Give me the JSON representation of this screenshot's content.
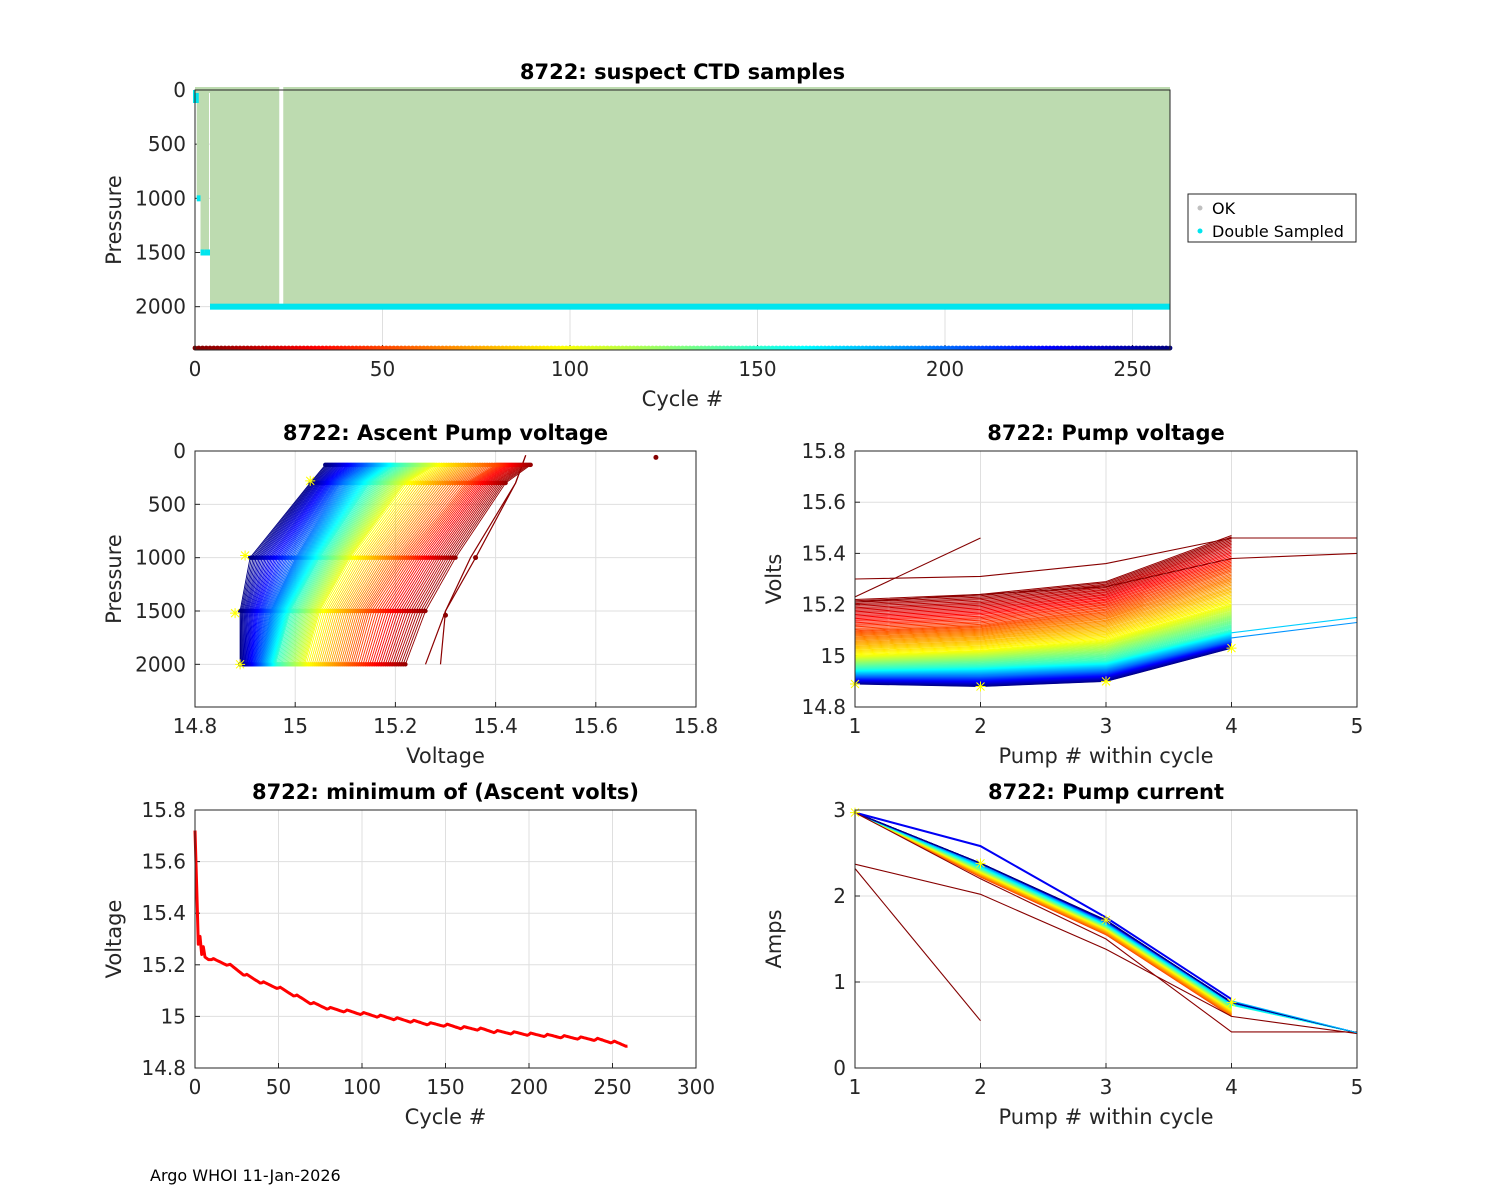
{
  "footer": "Argo WHOI 11-Jan-2026",
  "chart_data": [
    {
      "id": "p1",
      "type": "scatter",
      "title": "8722: suspect CTD samples",
      "xlabel": "Cycle #",
      "ylabel": "Pressure",
      "xlim": [
        0,
        260
      ],
      "ylim": [
        0,
        2400
      ],
      "y_reversed": true,
      "xticks": [
        0,
        50,
        100,
        150,
        200,
        250
      ],
      "yticks": [
        0,
        500,
        1000,
        1500,
        2000
      ],
      "grid": true,
      "legend_position": "right",
      "legend": [
        {
          "label": "OK",
          "color": "#c0c0c0"
        },
        {
          "label": "Double Sampled",
          "color": "#00e5ee"
        }
      ],
      "ok_fill_color": "#bddbb0",
      "ok_region": {
        "cycle_start": 4,
        "cycle_end": 260,
        "pressure_top": 0,
        "pressure_bottom": 2000,
        "gap_cycle": 23
      },
      "early_cycles": [
        {
          "cycle": 1,
          "max_pressure": 1000
        },
        {
          "cycle": 2,
          "max_pressure": 1500
        },
        {
          "cycle": 3,
          "max_pressure": 1500
        }
      ],
      "double_sampled_pressure": 2000,
      "cycle_colorbar_pressure": 2400
    },
    {
      "id": "p2",
      "type": "line",
      "title": "8722: Ascent Pump voltage",
      "xlabel": "Voltage",
      "ylabel": "Pressure",
      "xlim": [
        14.8,
        15.8
      ],
      "ylim": [
        0,
        2400
      ],
      "y_reversed": true,
      "xticks": [
        14.8,
        15,
        15.2,
        15.4,
        15.6,
        15.8
      ],
      "yticks": [
        0,
        500,
        1000,
        1500,
        2000
      ],
      "grid": true,
      "profile_pressures": [
        2000,
        1500,
        1000,
        300,
        130
      ],
      "profiles_by_cycle": [
        {
          "cycle": 1,
          "voltages": [
            15.72,
            15.72
          ],
          "pressures": [
            60,
            60
          ]
        },
        {
          "cycle": 5,
          "voltages": [
            15.22,
            15.26,
            15.32,
            15.42,
            15.47
          ]
        },
        {
          "cycle": 50,
          "voltages": [
            15.12,
            15.15,
            15.22,
            15.34,
            15.4
          ]
        },
        {
          "cycle": 100,
          "voltages": [
            15.02,
            15.05,
            15.11,
            15.22,
            15.28
          ]
        },
        {
          "cycle": 150,
          "voltages": [
            14.96,
            14.99,
            15.05,
            15.15,
            15.2
          ]
        },
        {
          "cycle": 200,
          "voltages": [
            14.93,
            14.95,
            15.0,
            15.09,
            15.14
          ]
        },
        {
          "cycle": 259,
          "voltages": [
            14.89,
            14.89,
            14.91,
            15.03,
            15.06
          ]
        }
      ],
      "latest_markers": [
        {
          "voltage": 14.89,
          "pressure": 2000
        },
        {
          "voltage": 14.88,
          "pressure": 1520
        },
        {
          "voltage": 14.9,
          "pressure": 980
        },
        {
          "voltage": 15.03,
          "pressure": 280
        }
      ]
    },
    {
      "id": "p3",
      "type": "line",
      "title": "8722: Pump voltage",
      "xlabel": "Pump # within cycle",
      "ylabel": "Volts",
      "xlim": [
        1,
        5
      ],
      "ylim": [
        14.8,
        15.8
      ],
      "xticks": [
        1,
        2,
        3,
        4,
        5
      ],
      "yticks": [
        14.8,
        15,
        15.2,
        15.4,
        15.6,
        15.8
      ],
      "grid": true,
      "series_by_cycle": [
        {
          "cycle": 5,
          "values": [
            15.22,
            15.24,
            15.29,
            15.47
          ]
        },
        {
          "cycle": 50,
          "values": [
            15.1,
            15.12,
            15.18,
            15.34
          ]
        },
        {
          "cycle": 100,
          "values": [
            15.0,
            15.02,
            15.06,
            15.2
          ]
        },
        {
          "cycle": 150,
          "values": [
            14.95,
            14.96,
            14.98,
            15.1
          ]
        },
        {
          "cycle": 200,
          "values": [
            14.92,
            14.92,
            14.94,
            15.06
          ]
        },
        {
          "cycle": 259,
          "values": [
            14.89,
            14.88,
            14.9,
            15.03
          ]
        }
      ],
      "extra_lines": [
        {
          "cycle": 1,
          "x": [
            1,
            2
          ],
          "values": [
            15.23,
            15.46
          ]
        },
        {
          "cycle": 2,
          "x": [
            1,
            2,
            3,
            4,
            5
          ],
          "values": [
            15.3,
            15.31,
            15.36,
            15.46,
            15.46
          ]
        },
        {
          "cycle": 3,
          "x": [
            1,
            2,
            3,
            4,
            5
          ],
          "values": [
            15.21,
            15.24,
            15.27,
            15.38,
            15.4
          ]
        },
        {
          "cycle": 175,
          "x": [
            4,
            5
          ],
          "values": [
            15.09,
            15.15
          ]
        },
        {
          "cycle": 190,
          "x": [
            4,
            5
          ],
          "values": [
            15.07,
            15.13
          ]
        }
      ],
      "latest_markers": [
        [
          1,
          14.89
        ],
        [
          2,
          14.88
        ],
        [
          3,
          14.9
        ],
        [
          4,
          15.03
        ]
      ]
    },
    {
      "id": "p4",
      "type": "line",
      "title": "8722: minimum of (Ascent volts)",
      "xlabel": "Cycle #",
      "ylabel": "Voltage",
      "xlim": [
        0,
        300
      ],
      "ylim": [
        14.8,
        15.8
      ],
      "xticks": [
        0,
        50,
        100,
        150,
        200,
        250,
        300
      ],
      "yticks": [
        14.8,
        15,
        15.2,
        15.4,
        15.6,
        15.8
      ],
      "grid": true,
      "series": [
        {
          "name": "minimum ascent volts",
          "color": "#ff0000",
          "x": [
            0,
            1,
            2,
            3,
            4,
            5,
            6,
            8,
            10,
            20,
            30,
            40,
            50,
            60,
            70,
            80,
            90,
            100,
            110,
            120,
            130,
            140,
            150,
            160,
            170,
            180,
            190,
            200,
            210,
            220,
            230,
            240,
            250,
            259
          ],
          "values": [
            15.72,
            15.5,
            15.28,
            15.31,
            15.24,
            15.27,
            15.23,
            15.22,
            15.22,
            15.2,
            15.16,
            15.13,
            15.11,
            15.08,
            15.05,
            15.03,
            15.02,
            15.01,
            15.0,
            14.99,
            14.98,
            14.97,
            14.965,
            14.955,
            14.95,
            14.94,
            14.935,
            14.93,
            14.925,
            14.92,
            14.915,
            14.91,
            14.9,
            14.885
          ]
        }
      ]
    },
    {
      "id": "p5",
      "type": "line",
      "title": "8722: Pump current",
      "xlabel": "Pump # within cycle",
      "ylabel": "Amps",
      "xlim": [
        1,
        5
      ],
      "ylim": [
        0,
        3
      ],
      "xticks": [
        1,
        2,
        3,
        4,
        5
      ],
      "yticks": [
        0,
        1,
        2,
        3
      ],
      "grid": true,
      "series_by_cycle": [
        {
          "cycle": 50,
          "values": [
            2.97,
            2.22,
            1.55,
            0.6
          ]
        },
        {
          "cycle": 100,
          "values": [
            2.97,
            2.28,
            1.62,
            0.68
          ]
        },
        {
          "cycle": 150,
          "values": [
            2.97,
            2.33,
            1.66,
            0.73
          ]
        },
        {
          "cycle": 200,
          "values": [
            2.97,
            2.38,
            1.7,
            0.77
          ]
        },
        {
          "cycle": 230,
          "values": [
            2.97,
            2.58,
            1.75,
            0.8
          ]
        },
        {
          "cycle": 259,
          "values": [
            2.97,
            2.38,
            1.72,
            0.76
          ]
        }
      ],
      "extra_lines": [
        {
          "cycle": 1,
          "x": [
            1,
            2
          ],
          "values": [
            2.32,
            0.55
          ]
        },
        {
          "cycle": 2,
          "x": [
            1,
            2,
            3,
            4,
            5
          ],
          "values": [
            2.37,
            2.02,
            1.38,
            0.6,
            0.4
          ]
        },
        {
          "cycle": 3,
          "x": [
            1,
            2,
            3,
            4,
            5
          ],
          "values": [
            2.97,
            2.2,
            1.5,
            0.42,
            0.42
          ]
        },
        {
          "cycle": 180,
          "x": [
            4,
            5
          ],
          "values": [
            0.78,
            0.41
          ]
        }
      ],
      "latest_markers": [
        [
          1,
          2.97
        ],
        [
          2,
          2.38
        ],
        [
          3,
          1.72
        ],
        [
          4,
          0.76
        ]
      ]
    }
  ]
}
